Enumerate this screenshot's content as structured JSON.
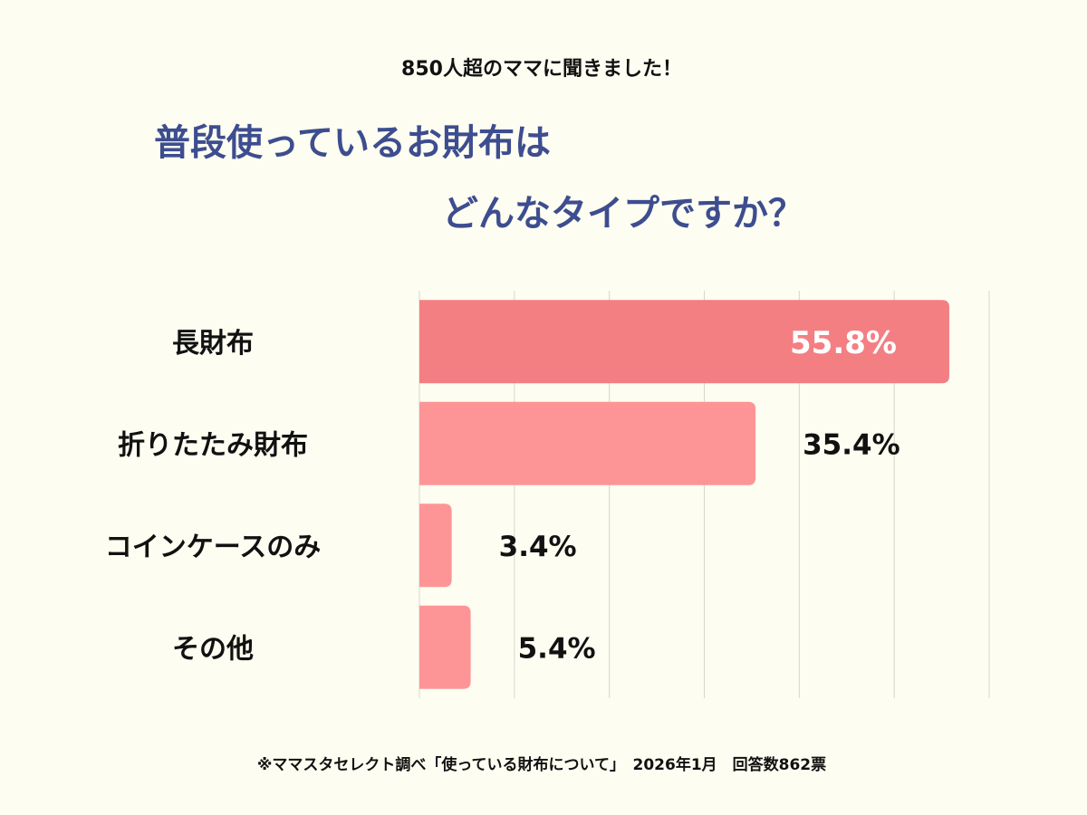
{
  "chart_data": {
    "type": "bar",
    "orientation": "horizontal",
    "subtitle": "850人超のママに聞きました！",
    "title": [
      "普段使っているお財布は",
      "どんなタイプですか？"
    ],
    "categories": [
      "長財布",
      "折りたたみ財布",
      "コインケースのみ",
      "その他"
    ],
    "values": [
      55.8,
      35.4,
      3.4,
      5.4
    ],
    "value_labels": [
      "55.8%",
      "35.4%",
      "3.4%",
      "5.4%"
    ],
    "colors": [
      "#f37f83",
      "#fd9597",
      "#fd9597",
      "#fd9597"
    ],
    "xlim": [
      0,
      60
    ],
    "xticks": [
      0,
      10,
      20,
      30,
      40,
      50,
      60
    ],
    "grid": true,
    "note": "※ママスタセレクト調べ「使っている財布について」　2026年1月　回答数862票"
  }
}
